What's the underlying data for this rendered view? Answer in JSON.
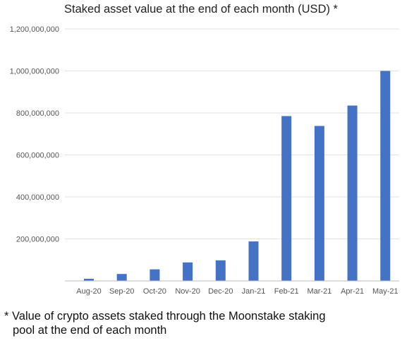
{
  "chart_data": {
    "type": "bar",
    "title": "Staked asset value at the end of each month (USD) *",
    "xlabel": "",
    "ylabel": "",
    "categories": [
      "Aug-20",
      "Sep-20",
      "Oct-20",
      "Nov-20",
      "Dec-20",
      "Jan-21",
      "Feb-21",
      "Mar-21",
      "Apr-21",
      "May-21"
    ],
    "values": [
      10000000,
      33000000,
      55000000,
      88000000,
      98000000,
      188000000,
      785000000,
      738000000,
      835000000,
      1000000000
    ],
    "ylim": [
      0,
      1200000000
    ],
    "yticks": [
      200000000,
      400000000,
      600000000,
      800000000,
      1000000000,
      1200000000
    ],
    "ytick_labels": [
      "200,000,000",
      "400,000,000",
      "600,000,000",
      "800,000,000",
      "1,000,000,000",
      "1,200,000,000"
    ],
    "grid": true,
    "legend": "none",
    "colors": {
      "bar": "#4472c4",
      "grid": "#e2e2e2",
      "axis": "#bdbdbd",
      "tick_text": "#555555"
    }
  },
  "footnote": {
    "line1": "* Value of crypto assets staked through the Moonstake staking",
    "line2": "pool at the end of each month"
  }
}
